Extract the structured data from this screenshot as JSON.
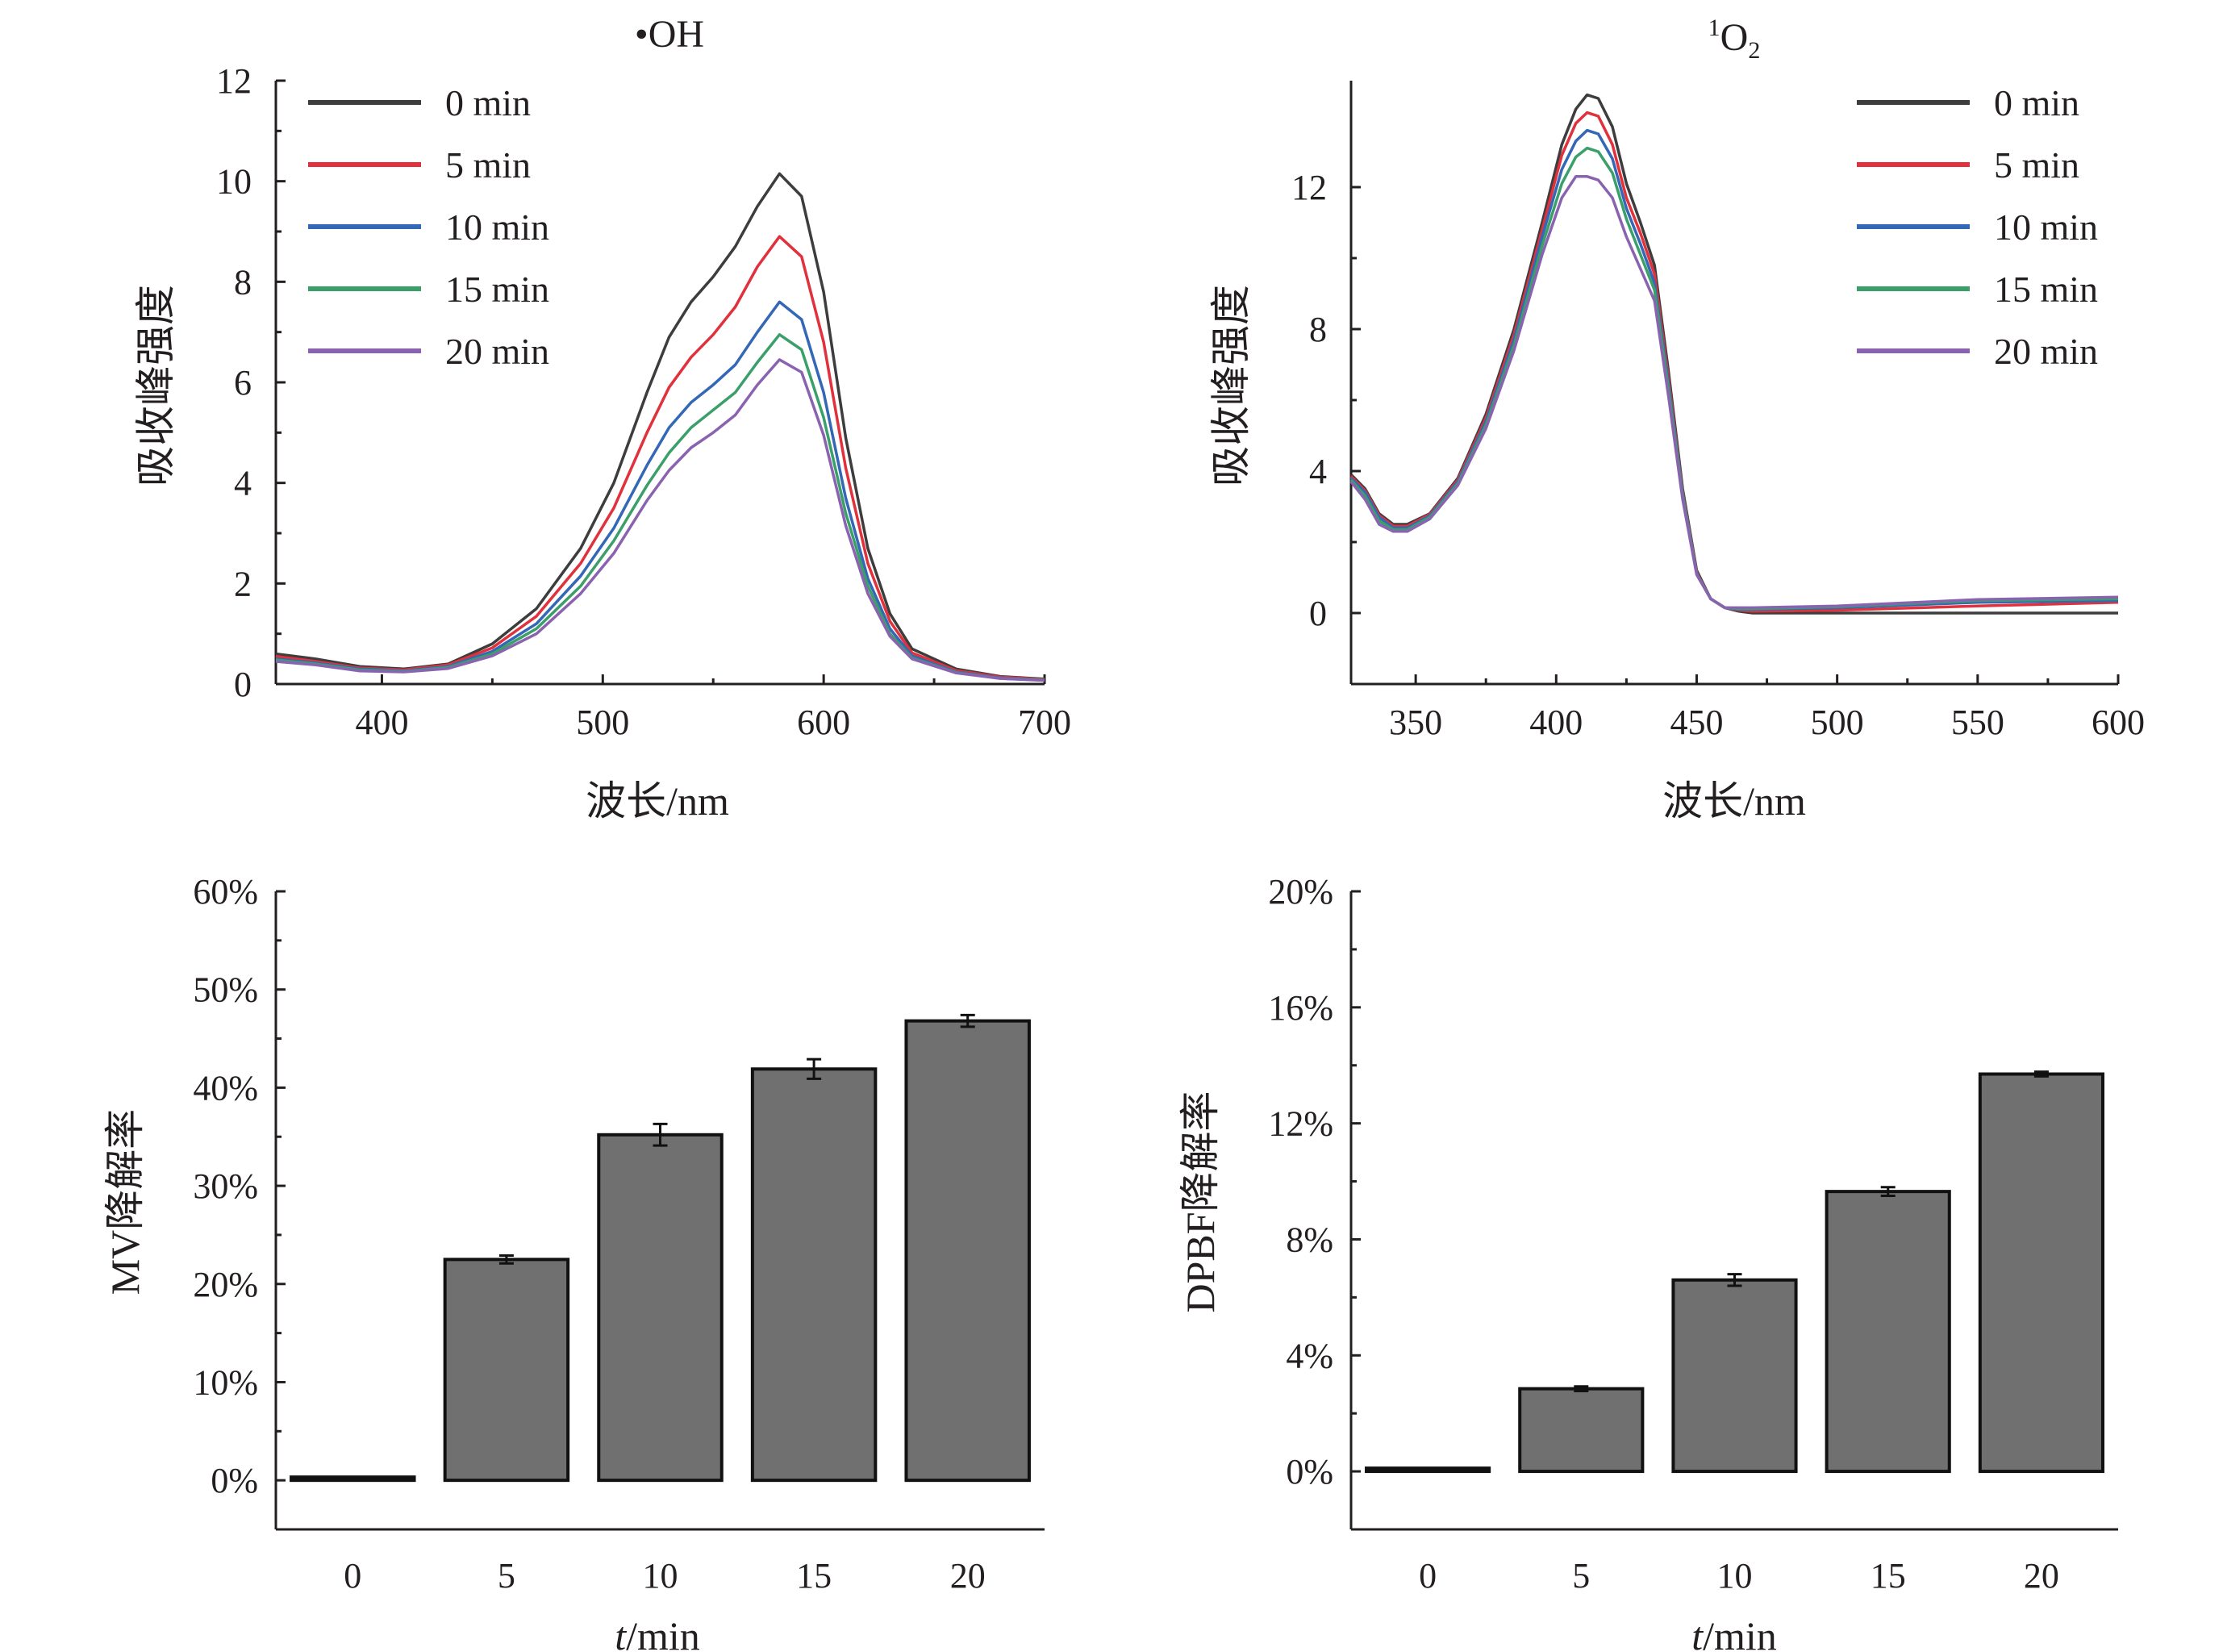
{
  "chart_data": [
    {
      "type": "line",
      "title": "•OH",
      "xlabel": "波长/nm",
      "ylabel": "吸收峰强度",
      "xlim": [
        352,
        700
      ],
      "ylim": [
        0,
        12
      ],
      "xticks": [
        400,
        500,
        600,
        700
      ],
      "yticks": [
        0,
        2,
        4,
        6,
        8,
        10,
        12
      ],
      "legend_position": "top-left",
      "series": [
        {
          "name": "0 min",
          "color": "#3d3d3d",
          "x": [
            352,
            370,
            390,
            410,
            430,
            450,
            470,
            490,
            505,
            520,
            530,
            540,
            550,
            560,
            570,
            580,
            590,
            600,
            610,
            620,
            630,
            640,
            660,
            680,
            700
          ],
          "y": [
            0.6,
            0.5,
            0.35,
            0.3,
            0.4,
            0.8,
            1.5,
            2.7,
            4.0,
            5.8,
            6.9,
            7.6,
            8.1,
            8.7,
            9.5,
            10.15,
            9.7,
            7.8,
            4.9,
            2.7,
            1.4,
            0.7,
            0.3,
            0.15,
            0.1
          ]
        },
        {
          "name": "5 min",
          "color": "#e0313c",
          "x": [
            352,
            370,
            390,
            410,
            430,
            450,
            470,
            490,
            505,
            520,
            530,
            540,
            550,
            560,
            570,
            580,
            590,
            600,
            610,
            620,
            630,
            640,
            660,
            680,
            700
          ],
          "y": [
            0.55,
            0.45,
            0.32,
            0.28,
            0.38,
            0.72,
            1.35,
            2.4,
            3.5,
            5.0,
            5.9,
            6.5,
            6.95,
            7.5,
            8.3,
            8.9,
            8.5,
            6.8,
            4.3,
            2.4,
            1.25,
            0.62,
            0.27,
            0.14,
            0.09
          ]
        },
        {
          "name": "10 min",
          "color": "#3467b5",
          "x": [
            352,
            370,
            390,
            410,
            430,
            450,
            470,
            490,
            505,
            520,
            530,
            540,
            550,
            560,
            570,
            580,
            590,
            600,
            610,
            620,
            630,
            640,
            660,
            680,
            700
          ],
          "y": [
            0.5,
            0.42,
            0.3,
            0.26,
            0.35,
            0.65,
            1.2,
            2.15,
            3.1,
            4.35,
            5.1,
            5.6,
            5.95,
            6.35,
            7.0,
            7.6,
            7.25,
            5.8,
            3.7,
            2.1,
            1.1,
            0.56,
            0.24,
            0.12,
            0.08
          ]
        },
        {
          "name": "15 min",
          "color": "#3b9f6a",
          "x": [
            352,
            370,
            390,
            410,
            430,
            450,
            470,
            490,
            505,
            520,
            530,
            540,
            550,
            560,
            570,
            580,
            590,
            600,
            610,
            620,
            630,
            640,
            660,
            680,
            700
          ],
          "y": [
            0.48,
            0.4,
            0.28,
            0.25,
            0.33,
            0.6,
            1.1,
            1.95,
            2.85,
            3.95,
            4.6,
            5.1,
            5.45,
            5.8,
            6.4,
            6.95,
            6.65,
            5.3,
            3.4,
            1.95,
            1.0,
            0.52,
            0.23,
            0.11,
            0.08
          ]
        },
        {
          "name": "20 min",
          "color": "#8a63b0",
          "x": [
            352,
            370,
            390,
            410,
            430,
            450,
            470,
            490,
            505,
            520,
            530,
            540,
            550,
            560,
            570,
            580,
            590,
            600,
            610,
            620,
            630,
            640,
            660,
            680,
            700
          ],
          "y": [
            0.45,
            0.38,
            0.26,
            0.24,
            0.31,
            0.56,
            1.0,
            1.8,
            2.6,
            3.65,
            4.25,
            4.7,
            5.0,
            5.35,
            5.95,
            6.45,
            6.2,
            4.95,
            3.15,
            1.8,
            0.95,
            0.5,
            0.22,
            0.11,
            0.07
          ]
        }
      ]
    },
    {
      "type": "line",
      "title_main": "O",
      "title_sup": "1",
      "title_sub": "2",
      "xlabel": "波长/nm",
      "ylabel": "吸收峰强度",
      "xlim": [
        327,
        600
      ],
      "ylim": [
        -2,
        15
      ],
      "xticks": [
        350,
        400,
        450,
        500,
        550,
        600
      ],
      "yticks": [
        0,
        4,
        8,
        12
      ],
      "legend_position": "top-right",
      "series": [
        {
          "name": "0 min",
          "color": "#3d3d3d",
          "x": [
            327,
            332,
            337,
            342,
            347,
            355,
            365,
            375,
            385,
            395,
            402,
            407,
            411,
            415,
            420,
            425,
            430,
            435,
            440,
            445,
            450,
            455,
            460,
            465,
            470,
            500,
            550,
            600
          ],
          "y": [
            3.9,
            3.5,
            2.8,
            2.5,
            2.5,
            2.8,
            3.8,
            5.6,
            8.0,
            11.0,
            13.2,
            14.2,
            14.6,
            14.5,
            13.7,
            12.1,
            11.0,
            9.8,
            6.8,
            3.5,
            1.2,
            0.4,
            0.15,
            0.05,
            0.0,
            0.0,
            0.0,
            0.0
          ]
        },
        {
          "name": "5 min",
          "color": "#e0313c",
          "x": [
            327,
            332,
            337,
            342,
            347,
            355,
            365,
            375,
            385,
            395,
            402,
            407,
            411,
            415,
            420,
            425,
            430,
            435,
            440,
            445,
            450,
            455,
            460,
            465,
            470,
            500,
            550,
            600
          ],
          "y": [
            3.85,
            3.45,
            2.75,
            2.45,
            2.45,
            2.78,
            3.75,
            5.5,
            7.85,
            10.8,
            12.9,
            13.8,
            14.1,
            14.0,
            13.2,
            11.7,
            10.7,
            9.55,
            6.6,
            3.4,
            1.15,
            0.4,
            0.15,
            0.08,
            0.05,
            0.08,
            0.2,
            0.3
          ]
        },
        {
          "name": "10 min",
          "color": "#3467b5",
          "x": [
            327,
            332,
            337,
            342,
            347,
            355,
            365,
            375,
            385,
            395,
            402,
            407,
            411,
            415,
            420,
            425,
            430,
            435,
            440,
            445,
            450,
            455,
            460,
            465,
            470,
            500,
            550,
            600
          ],
          "y": [
            3.8,
            3.4,
            2.7,
            2.4,
            2.4,
            2.74,
            3.7,
            5.4,
            7.7,
            10.6,
            12.5,
            13.3,
            13.6,
            13.5,
            12.8,
            11.4,
            10.4,
            9.3,
            6.45,
            3.35,
            1.12,
            0.4,
            0.15,
            0.1,
            0.1,
            0.15,
            0.3,
            0.35
          ]
        },
        {
          "name": "15 min",
          "color": "#3b9f6a",
          "x": [
            327,
            332,
            337,
            342,
            347,
            355,
            365,
            375,
            385,
            395,
            402,
            407,
            411,
            415,
            420,
            425,
            430,
            435,
            440,
            445,
            450,
            455,
            460,
            465,
            470,
            500,
            550,
            600
          ],
          "y": [
            3.75,
            3.3,
            2.6,
            2.35,
            2.35,
            2.7,
            3.65,
            5.3,
            7.55,
            10.35,
            12.1,
            12.85,
            13.1,
            13.0,
            12.4,
            11.1,
            10.1,
            9.1,
            6.3,
            3.3,
            1.1,
            0.4,
            0.15,
            0.12,
            0.12,
            0.18,
            0.35,
            0.4
          ]
        },
        {
          "name": "20 min",
          "color": "#8a63b0",
          "x": [
            327,
            332,
            337,
            342,
            347,
            355,
            365,
            375,
            385,
            395,
            402,
            407,
            411,
            415,
            420,
            425,
            430,
            435,
            440,
            445,
            450,
            455,
            460,
            465,
            470,
            500,
            550,
            600
          ],
          "y": [
            3.7,
            3.2,
            2.5,
            2.3,
            2.3,
            2.65,
            3.6,
            5.2,
            7.4,
            10.1,
            11.7,
            12.3,
            12.3,
            12.2,
            11.7,
            10.6,
            9.7,
            8.8,
            6.1,
            3.2,
            1.08,
            0.4,
            0.15,
            0.15,
            0.15,
            0.2,
            0.38,
            0.45
          ]
        }
      ]
    },
    {
      "type": "bar",
      "xlabel_italic": "t",
      "xlabel_rest": "/min",
      "ylabel": "MV降解率",
      "categories": [
        "0",
        "5",
        "10",
        "15",
        "20"
      ],
      "values": [
        0,
        22.5,
        35.2,
        41.9,
        46.8
      ],
      "errors": [
        0,
        0.4,
        1.1,
        1.0,
        0.6
      ],
      "ylim": [
        -5,
        60
      ],
      "yticks": [
        0,
        10,
        20,
        30,
        40,
        50,
        60
      ],
      "ytick_suffix": "%",
      "bar_color": "#707070"
    },
    {
      "type": "bar",
      "xlabel_italic": "t",
      "xlabel_rest": "/min",
      "ylabel": "DPBF降解率",
      "categories": [
        "0",
        "5",
        "10",
        "15",
        "20"
      ],
      "values": [
        0,
        2.85,
        6.6,
        9.65,
        13.7
      ],
      "errors": [
        0,
        0.08,
        0.2,
        0.15,
        0.08
      ],
      "ylim": [
        -2,
        20
      ],
      "yticks": [
        0,
        4,
        8,
        12,
        16,
        20
      ],
      "ytick_suffix": "%",
      "bar_color": "#707070"
    }
  ]
}
